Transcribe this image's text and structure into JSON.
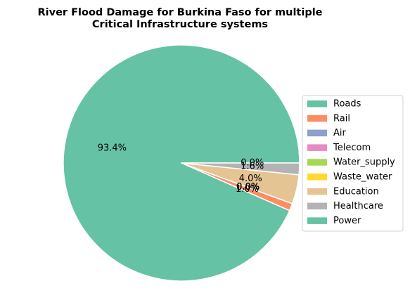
{
  "chart_data": {
    "type": "pie",
    "title_line1": "River Flood Damage for Burkina Faso for multiple",
    "title_line2": "Critical Infrastructure systems",
    "labels": [
      "Roads",
      "Rail",
      "Air",
      "Telecom",
      "Water_supply",
      "Waste_water",
      "Education",
      "Healthcare",
      "Power"
    ],
    "values": [
      93.4,
      1.0,
      0.0,
      0.0,
      0.0,
      0.0,
      4.0,
      1.6,
      0.0
    ],
    "pct_labels": [
      "93.4%",
      "1.0%",
      "0.0%",
      "0.0%",
      "0.0%",
      "0.0%",
      "4.0%",
      "1.6%",
      "0.0%"
    ],
    "colors": [
      "#66c2a5",
      "#fc8d62",
      "#8da0cb",
      "#e78ac3",
      "#a6d854",
      "#ffd92f",
      "#e5c494",
      "#b3b3b3",
      "#66c2a5"
    ],
    "legend_placement": "right",
    "start_angle_deg": 0,
    "direction": "counterclockwise"
  }
}
